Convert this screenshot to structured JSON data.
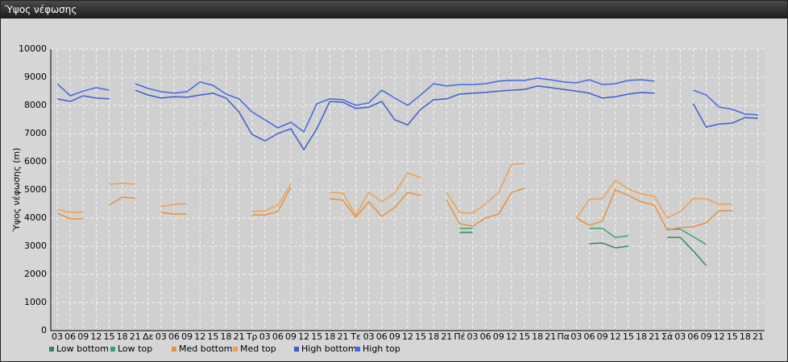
{
  "window": {
    "title": "Ύψος νέφωσης"
  },
  "chart_data": {
    "type": "line",
    "y_label": "Ύψος νέφωσης (m)",
    "categories": [
      "03",
      "06",
      "09",
      "12",
      "15",
      "18",
      "21",
      "Δε",
      "03",
      "06",
      "09",
      "12",
      "15",
      "18",
      "21",
      "Τρ",
      "03",
      "06",
      "09",
      "12",
      "15",
      "18",
      "21",
      "Τε",
      "03",
      "06",
      "09",
      "12",
      "15",
      "18",
      "21",
      "Πέ",
      "03",
      "06",
      "09",
      "12",
      "15",
      "18",
      "21",
      "Πα",
      "03",
      "06",
      "09",
      "12",
      "15",
      "18",
      "21",
      "Σά",
      "03",
      "06",
      "09",
      "12",
      "15",
      "18",
      "21"
    ],
    "ylim": [
      0,
      10000
    ],
    "yticks": [
      0,
      1000,
      2000,
      3000,
      4000,
      5000,
      6000,
      7000,
      8000,
      9000,
      10000
    ],
    "grid": true,
    "series": [
      {
        "name": "Low bottom",
        "color": "#2e8b57",
        "values": [
          null,
          null,
          null,
          null,
          null,
          null,
          null,
          null,
          null,
          null,
          null,
          null,
          null,
          null,
          null,
          null,
          null,
          null,
          null,
          null,
          null,
          null,
          null,
          null,
          null,
          null,
          null,
          null,
          null,
          null,
          null,
          3490,
          3490,
          null,
          null,
          null,
          null,
          null,
          null,
          null,
          null,
          3090,
          3110,
          2940,
          3000,
          null,
          null,
          3310,
          3310,
          2830,
          2310,
          null,
          null,
          null,
          null
        ]
      },
      {
        "name": "Low top",
        "color": "#3aa56a",
        "values": [
          null,
          null,
          null,
          null,
          null,
          null,
          null,
          null,
          null,
          null,
          null,
          null,
          null,
          null,
          null,
          null,
          null,
          null,
          null,
          null,
          null,
          null,
          null,
          null,
          null,
          null,
          null,
          null,
          null,
          null,
          null,
          3630,
          3630,
          null,
          null,
          null,
          null,
          null,
          null,
          null,
          null,
          3630,
          3630,
          3310,
          3370,
          null,
          null,
          3600,
          3600,
          3340,
          3060,
          null,
          null,
          null,
          null
        ]
      },
      {
        "name": "Med bottom",
        "color": "#e8903a",
        "values": [
          4170,
          3970,
          3970,
          null,
          4460,
          4740,
          4710,
          null,
          4200,
          4140,
          4140,
          null,
          null,
          null,
          null,
          4110,
          4110,
          4230,
          5090,
          null,
          null,
          4690,
          4630,
          4030,
          4570,
          4060,
          4370,
          4910,
          4800,
          null,
          4630,
          3800,
          3710,
          4000,
          4140,
          4910,
          5060,
          null,
          null,
          null,
          4000,
          3740,
          3890,
          5000,
          4800,
          4570,
          4460,
          3570,
          3660,
          3690,
          3830,
          4260,
          4260,
          null,
          null
        ]
      },
      {
        "name": "Med top",
        "color": "#f0a050",
        "values": [
          4310,
          4200,
          4200,
          null,
          5200,
          5230,
          5200,
          null,
          4400,
          4490,
          4510,
          null,
          null,
          null,
          null,
          4230,
          4260,
          4460,
          5200,
          null,
          null,
          4910,
          4890,
          4110,
          4910,
          4570,
          4890,
          5600,
          5430,
          null,
          4910,
          4200,
          4170,
          4510,
          4910,
          5910,
          5940,
          null,
          null,
          null,
          4000,
          4660,
          4690,
          5340,
          5030,
          4860,
          4770,
          4000,
          4230,
          4690,
          4690,
          4490,
          4490,
          null,
          null
        ]
      },
      {
        "name": "High bottom",
        "color": "#3a5fcd",
        "values": [
          8230,
          8140,
          8340,
          8260,
          8230,
          null,
          8540,
          8370,
          8260,
          8310,
          8290,
          8370,
          8430,
          8260,
          7770,
          6970,
          6740,
          7000,
          7170,
          6430,
          7170,
          8140,
          8110,
          7890,
          7940,
          8140,
          7490,
          7310,
          7860,
          8200,
          8230,
          8400,
          8430,
          8460,
          8510,
          8540,
          8570,
          8690,
          8630,
          8570,
          8510,
          8430,
          8260,
          8310,
          8400,
          8460,
          8430,
          null,
          null,
          8060,
          7230,
          7340,
          7370,
          7570,
          7540
        ]
      },
      {
        "name": "High top",
        "color": "#4169e1",
        "values": [
          8770,
          8340,
          8510,
          8630,
          8540,
          null,
          8770,
          8600,
          8490,
          8430,
          8490,
          8830,
          8710,
          8400,
          8230,
          7770,
          7490,
          7200,
          7400,
          7060,
          8060,
          8230,
          8200,
          8000,
          8090,
          8540,
          8260,
          8000,
          8370,
          8770,
          8690,
          8740,
          8740,
          8770,
          8860,
          8890,
          8890,
          8970,
          8910,
          8830,
          8800,
          8910,
          8740,
          8770,
          8890,
          8910,
          8860,
          null,
          null,
          8540,
          8370,
          7940,
          7860,
          7690,
          7660
        ]
      }
    ]
  }
}
